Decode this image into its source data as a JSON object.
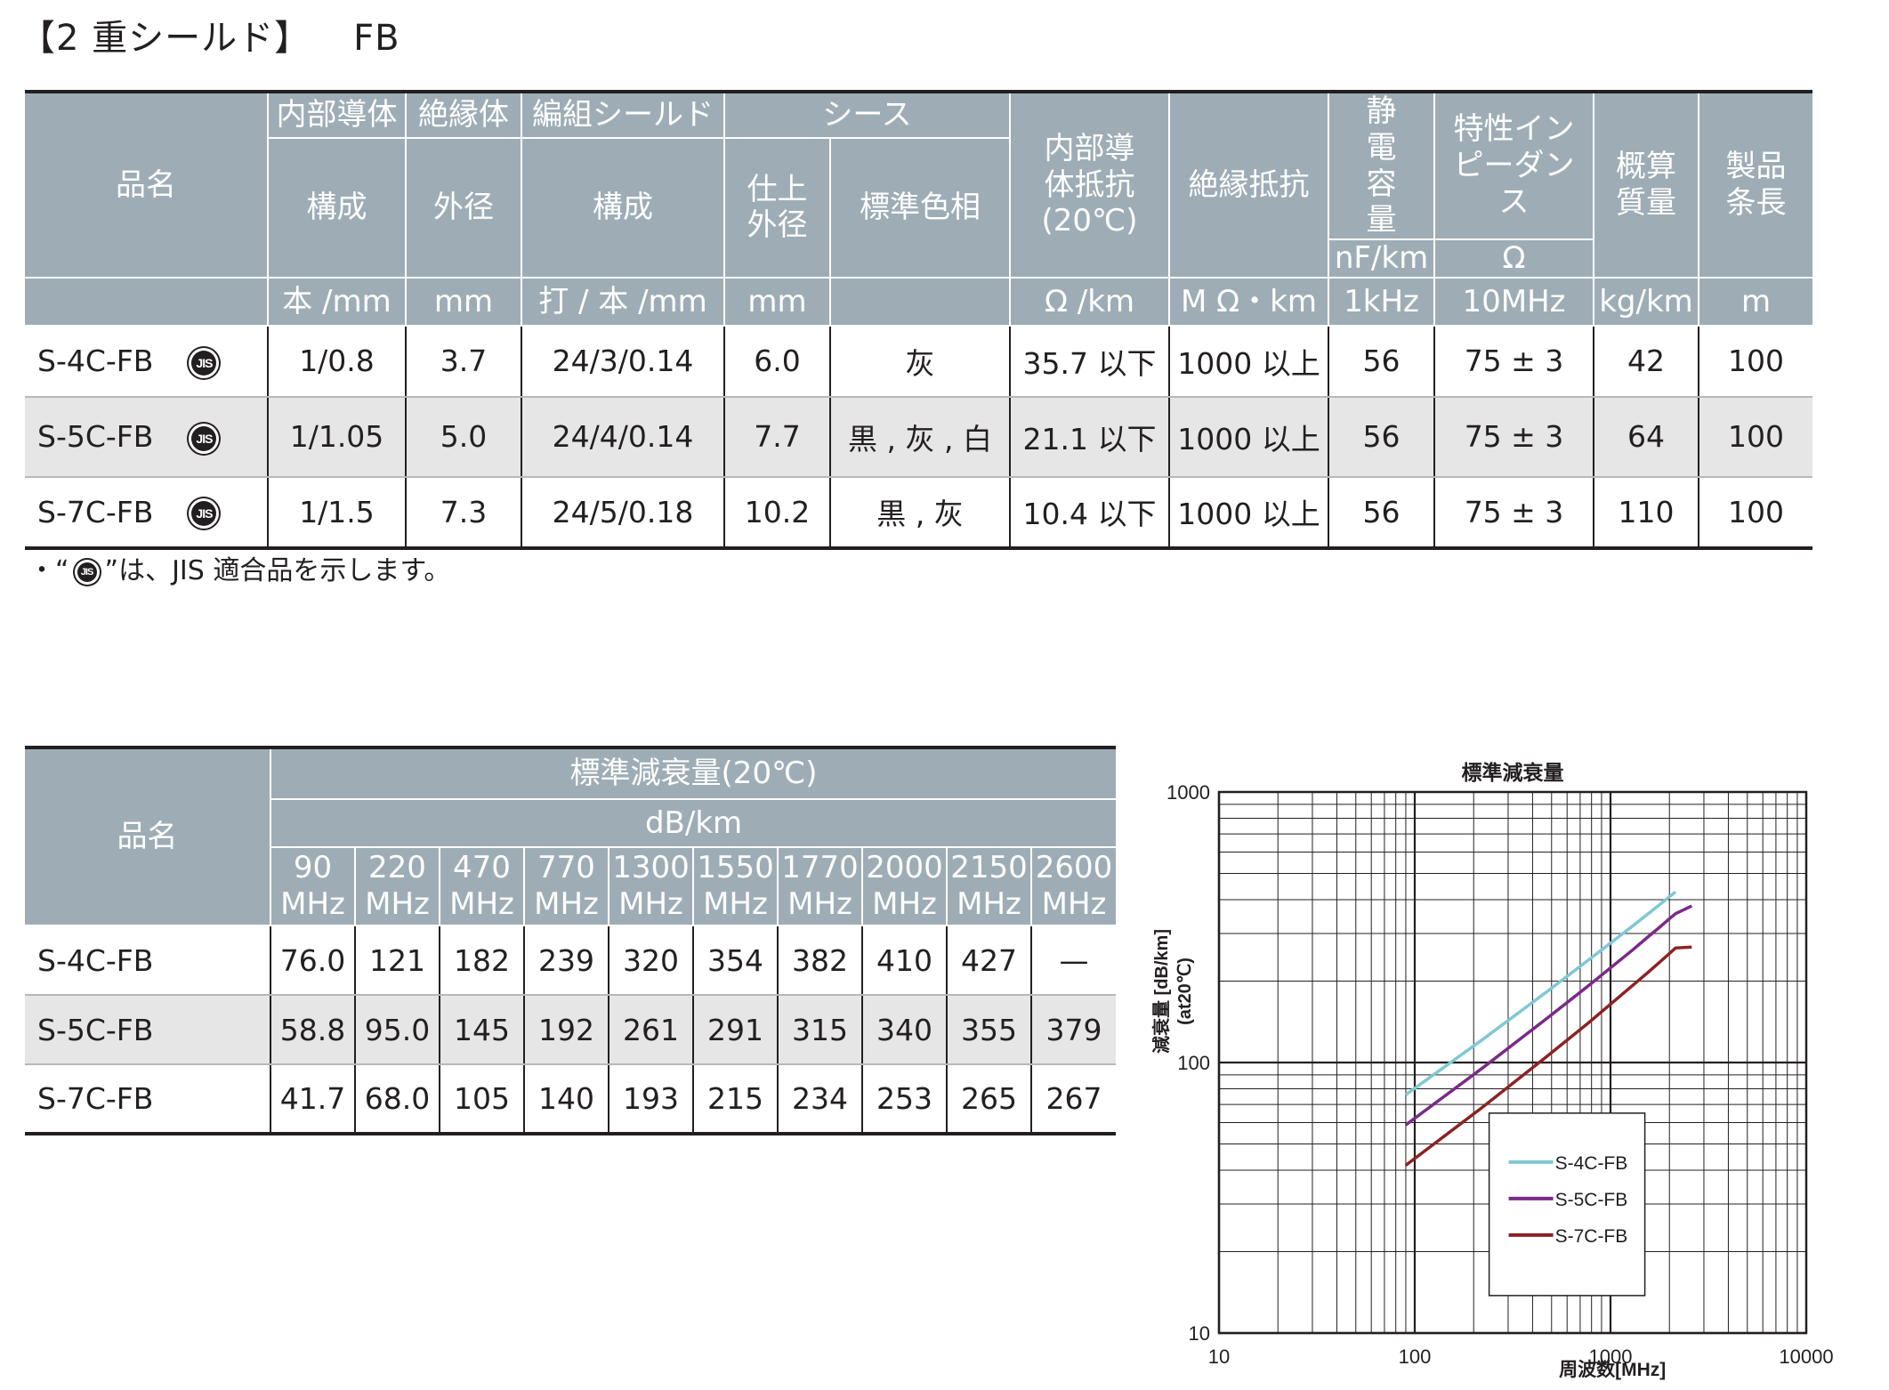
{
  "title": {
    "main": "【2 重シールド】",
    "suffix": "FB"
  },
  "spec_table": {
    "groups": {
      "inner_conductor": "内部導体",
      "insulation": "絶縁体",
      "braid_shield": "編組シールド",
      "sheath": "シース",
      "conductor_resistance": "内部導体抵抗(20℃)",
      "insulation_resistance": "絶縁抵抗",
      "capacitance": "静電容量",
      "impedance": "特性インピーダンス",
      "mass": "概算質量",
      "length": "製品条長",
      "product_name": "品名"
    },
    "subheaders": {
      "composition": "構成",
      "outer_diameter": "外径",
      "braid_composition": "構成",
      "finished_od": "仕上外径",
      "standard_color": "標準色相",
      "capacitance_unit": "nF/km",
      "impedance_unit": "Ω"
    },
    "units": [
      "本 /mm",
      "mm",
      "打 / 本 /mm",
      "mm",
      "",
      "Ω /km",
      "M Ω・km",
      "1kHz",
      "10MHz",
      "kg/km",
      "m"
    ],
    "rows": [
      {
        "name": "S-4C-FB",
        "jis": "JIS",
        "cells": [
          "1/0.8",
          "3.7",
          "24/3/0.14",
          "6.0",
          "灰",
          "35.7 以下",
          "1000 以上",
          "56",
          "75 ± 3",
          "42",
          "100"
        ]
      },
      {
        "name": "S-5C-FB",
        "jis": "JIS",
        "cells": [
          "1/1.05",
          "5.0",
          "24/4/0.14",
          "7.7",
          "黒 , 灰 , 白",
          "21.1 以下",
          "1000 以上",
          "56",
          "75 ± 3",
          "64",
          "100"
        ]
      },
      {
        "name": "S-7C-FB",
        "jis": "JIS",
        "cells": [
          "1/1.5",
          "7.3",
          "24/5/0.18",
          "10.2",
          "黒 , 灰",
          "10.4 以下",
          "1000 以上",
          "56",
          "75 ± 3",
          "110",
          "100"
        ]
      }
    ]
  },
  "jis_note": {
    "prefix": "・“",
    "mark": "JIS",
    "suffix": "”は、JIS 適合品を示します。"
  },
  "atten_table": {
    "product_name": "品名",
    "title": "標準減衰量(20℃)",
    "unit": "dB/km",
    "frequencies": [
      "90",
      "220",
      "470",
      "770",
      "1300",
      "1550",
      "1770",
      "2000",
      "2150",
      "2600"
    ],
    "freq_unit": "MHz",
    "rows": [
      {
        "name": "S-4C-FB",
        "values": [
          "76.0",
          "121",
          "182",
          "239",
          "320",
          "354",
          "382",
          "410",
          "427",
          "—"
        ]
      },
      {
        "name": "S-5C-FB",
        "values": [
          "58.8",
          "95.0",
          "145",
          "192",
          "261",
          "291",
          "315",
          "340",
          "355",
          "379"
        ]
      },
      {
        "name": "S-7C-FB",
        "values": [
          "41.7",
          "68.0",
          "105",
          "140",
          "193",
          "215",
          "234",
          "253",
          "265",
          "267"
        ]
      }
    ]
  },
  "chart_data": {
    "type": "line",
    "title": "標準減衰量",
    "xlabel": "周波数[MHz]",
    "ylabel": "減衰量 [dB/km]",
    "ylabel2": "(at20℃)",
    "x_scale": "log",
    "y_scale": "log",
    "xlim": [
      10,
      10000
    ],
    "ylim": [
      10,
      1000
    ],
    "x_ticks": [
      "10",
      "100",
      "1000",
      "10000"
    ],
    "y_ticks": [
      "10",
      "100",
      "1000"
    ],
    "grid": true,
    "legend_position": "bottom-right",
    "series": [
      {
        "name": "S-4C-FB",
        "color": "#7ec8d3",
        "x": [
          90,
          220,
          470,
          770,
          1300,
          1550,
          1770,
          2000,
          2150
        ],
        "y": [
          76.0,
          121,
          182,
          239,
          320,
          354,
          382,
          410,
          427
        ]
      },
      {
        "name": "S-5C-FB",
        "color": "#7b2a88",
        "x": [
          90,
          220,
          470,
          770,
          1300,
          1550,
          1770,
          2000,
          2150,
          2600
        ],
        "y": [
          58.8,
          95.0,
          145,
          192,
          261,
          291,
          315,
          340,
          355,
          379
        ]
      },
      {
        "name": "S-7C-FB",
        "color": "#8b2323",
        "x": [
          90,
          220,
          470,
          770,
          1300,
          1550,
          1770,
          2000,
          2150,
          2600
        ],
        "y": [
          41.7,
          68.0,
          105,
          140,
          193,
          215,
          234,
          253,
          265,
          267
        ]
      }
    ]
  }
}
